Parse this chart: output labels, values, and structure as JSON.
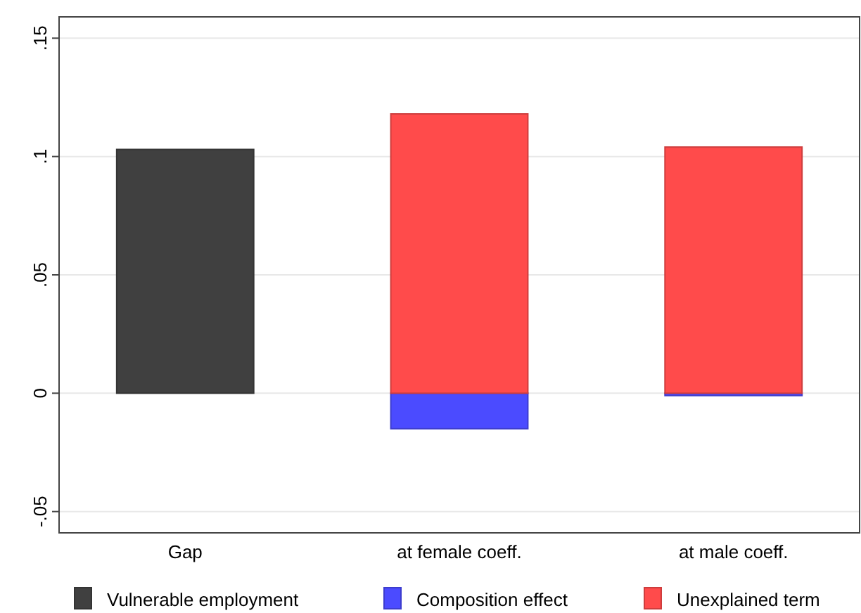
{
  "chart_data": {
    "type": "bar",
    "categories": [
      "Gap",
      "at female coeff.",
      "at male coeff."
    ],
    "series": [
      {
        "name": "Vulnerable employment",
        "color": "#404040",
        "values": [
          0.103,
          null,
          null
        ]
      },
      {
        "name": "Composition effect",
        "color": "#4b4bff",
        "values": [
          null,
          -0.015,
          -0.001
        ]
      },
      {
        "name": "Unexplained term",
        "color": "#ff4b4b",
        "values": [
          null,
          0.118,
          0.104
        ]
      }
    ],
    "ylim": [
      -0.059,
      0.159
    ],
    "yticks": [
      {
        "value": -0.05,
        "label": "-.05"
      },
      0,
      {
        "value": 0.05,
        "label": ".05"
      },
      {
        "value": 0.1,
        "label": ".1"
      },
      {
        "value": 0.15,
        "label": ".15"
      }
    ],
    "grid": "y",
    "legend": "bottom"
  }
}
